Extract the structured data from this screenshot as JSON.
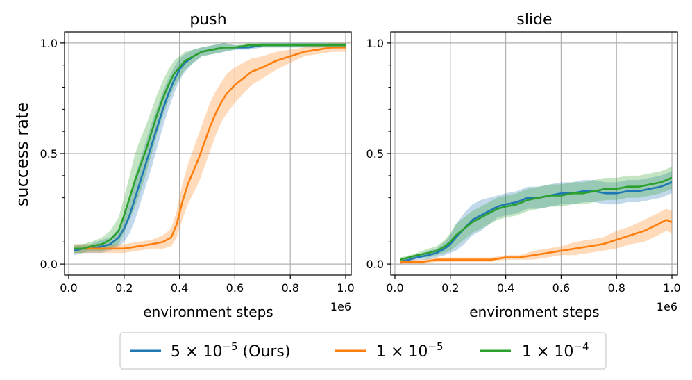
{
  "chart_data": {
    "type": "line",
    "ylabel": "success rate",
    "shared_legend": {
      "placement": "bottom-center",
      "entries": [
        {
          "label_main": "5 × 10",
          "label_sup": "−5",
          "label_suffix": " (Ours)",
          "color": "#1f77b4"
        },
        {
          "label_main": "1 × 10",
          "label_sup": "−5",
          "label_suffix": "",
          "color": "#ff7f0e"
        },
        {
          "label_main": "1 × 10",
          "label_sup": "−4",
          "label_suffix": "",
          "color": "#2ca02c"
        }
      ]
    },
    "panels": [
      {
        "title": "push",
        "xlabel": "environment steps",
        "x_offset_label": "1e6",
        "xlim": [
          -0.015,
          1.02
        ],
        "ylim": [
          -0.05,
          1.05
        ],
        "xticks": [
          0.0,
          0.2,
          0.4,
          0.6,
          0.8,
          1.0
        ],
        "xtick_labels": [
          "0.0",
          "0.2",
          "0.4",
          "0.6",
          "0.8",
          "1.0"
        ],
        "yticks": [
          0.0,
          0.5,
          1.0
        ],
        "ytick_labels": [
          "0.0",
          "0.5",
          "1.0"
        ],
        "grid": true,
        "series": [
          {
            "name": "5e-5 (Ours)",
            "color": "#1f77b4",
            "x": [
              0.02,
              0.05,
              0.08,
              0.12,
              0.15,
              0.18,
              0.2,
              0.22,
              0.24,
              0.26,
              0.28,
              0.3,
              0.32,
              0.34,
              0.36,
              0.38,
              0.4,
              0.42,
              0.45,
              0.48,
              0.52,
              0.56,
              0.6,
              0.65,
              0.7,
              0.75,
              0.8,
              0.85,
              0.9,
              0.95,
              1.0
            ],
            "mean": [
              0.06,
              0.07,
              0.07,
              0.08,
              0.09,
              0.12,
              0.16,
              0.22,
              0.3,
              0.38,
              0.46,
              0.54,
              0.62,
              0.7,
              0.77,
              0.83,
              0.88,
              0.91,
              0.94,
              0.96,
              0.97,
              0.98,
              0.98,
              0.98,
              0.99,
              0.99,
              0.99,
              0.99,
              0.99,
              0.99,
              0.99
            ],
            "band": [
              0.02,
              0.02,
              0.02,
              0.03,
              0.03,
              0.04,
              0.06,
              0.08,
              0.1,
              0.1,
              0.1,
              0.1,
              0.09,
              0.08,
              0.07,
              0.06,
              0.05,
              0.04,
              0.03,
              0.02,
              0.02,
              0.02,
              0.01,
              0.01,
              0.01,
              0.01,
              0.01,
              0.01,
              0.01,
              0.01,
              0.01
            ]
          },
          {
            "name": "1e-5",
            "color": "#ff7f0e",
            "x": [
              0.02,
              0.05,
              0.1,
              0.15,
              0.2,
              0.25,
              0.3,
              0.34,
              0.37,
              0.39,
              0.41,
              0.43,
              0.45,
              0.47,
              0.49,
              0.51,
              0.53,
              0.55,
              0.57,
              0.6,
              0.63,
              0.66,
              0.7,
              0.75,
              0.8,
              0.85,
              0.9,
              0.95,
              1.0
            ],
            "mean": [
              0.07,
              0.07,
              0.07,
              0.07,
              0.07,
              0.08,
              0.09,
              0.1,
              0.12,
              0.18,
              0.28,
              0.36,
              0.42,
              0.48,
              0.55,
              0.62,
              0.68,
              0.73,
              0.77,
              0.81,
              0.84,
              0.87,
              0.89,
              0.92,
              0.94,
              0.96,
              0.97,
              0.98,
              0.98
            ],
            "band": [
              0.02,
              0.02,
              0.02,
              0.02,
              0.02,
              0.02,
              0.02,
              0.03,
              0.04,
              0.06,
              0.08,
              0.09,
              0.1,
              0.11,
              0.11,
              0.11,
              0.1,
              0.09,
              0.09,
              0.08,
              0.07,
              0.06,
              0.05,
              0.04,
              0.03,
              0.02,
              0.02,
              0.02,
              0.02
            ]
          },
          {
            "name": "1e-4",
            "color": "#2ca02c",
            "x": [
              0.02,
              0.05,
              0.08,
              0.12,
              0.15,
              0.18,
              0.2,
              0.22,
              0.24,
              0.26,
              0.28,
              0.3,
              0.32,
              0.34,
              0.36,
              0.38,
              0.4,
              0.42,
              0.45,
              0.48,
              0.52,
              0.56,
              0.6,
              0.65,
              0.7,
              0.75,
              0.8,
              0.85,
              0.9,
              0.95,
              1.0
            ],
            "mean": [
              0.07,
              0.07,
              0.08,
              0.09,
              0.11,
              0.15,
              0.22,
              0.3,
              0.38,
              0.45,
              0.52,
              0.6,
              0.68,
              0.75,
              0.81,
              0.86,
              0.89,
              0.92,
              0.94,
              0.96,
              0.97,
              0.98,
              0.98,
              0.99,
              0.99,
              0.99,
              0.99,
              0.99,
              0.99,
              0.99,
              0.99
            ],
            "band": [
              0.02,
              0.02,
              0.02,
              0.03,
              0.04,
              0.06,
              0.08,
              0.1,
              0.12,
              0.12,
              0.11,
              0.1,
              0.09,
              0.08,
              0.07,
              0.06,
              0.05,
              0.04,
              0.03,
              0.02,
              0.02,
              0.02,
              0.01,
              0.01,
              0.01,
              0.01,
              0.01,
              0.01,
              0.01,
              0.01,
              0.01
            ]
          }
        ]
      },
      {
        "title": "slide",
        "xlabel": "environment steps",
        "x_offset_label": "1e6",
        "xlim": [
          -0.015,
          1.02
        ],
        "ylim": [
          -0.05,
          1.05
        ],
        "xticks": [
          0.0,
          0.2,
          0.4,
          0.6,
          0.8,
          1.0
        ],
        "xtick_labels": [
          "0.0",
          "0.2",
          "0.4",
          "0.6",
          "0.8",
          "1.0"
        ],
        "yticks": [
          0.0,
          0.5,
          1.0
        ],
        "ytick_labels": [
          "0.0",
          "0.5",
          "1.0"
        ],
        "grid": true,
        "series": [
          {
            "name": "5e-5 (Ours)",
            "color": "#1f77b4",
            "x": [
              0.02,
              0.05,
              0.08,
              0.12,
              0.15,
              0.18,
              0.2,
              0.22,
              0.25,
              0.28,
              0.31,
              0.34,
              0.37,
              0.4,
              0.44,
              0.48,
              0.52,
              0.56,
              0.6,
              0.64,
              0.68,
              0.72,
              0.76,
              0.8,
              0.84,
              0.88,
              0.92,
              0.96,
              1.0
            ],
            "mean": [
              0.01,
              0.02,
              0.03,
              0.04,
              0.05,
              0.07,
              0.09,
              0.12,
              0.16,
              0.2,
              0.22,
              0.24,
              0.26,
              0.27,
              0.28,
              0.3,
              0.3,
              0.31,
              0.32,
              0.32,
              0.33,
              0.33,
              0.32,
              0.32,
              0.33,
              0.33,
              0.34,
              0.35,
              0.37
            ],
            "band": [
              0.01,
              0.01,
              0.01,
              0.02,
              0.02,
              0.03,
              0.04,
              0.06,
              0.07,
              0.07,
              0.07,
              0.06,
              0.05,
              0.05,
              0.05,
              0.05,
              0.05,
              0.05,
              0.05,
              0.05,
              0.05,
              0.05,
              0.05,
              0.05,
              0.05,
              0.05,
              0.05,
              0.05,
              0.05
            ]
          },
          {
            "name": "1e-5",
            "color": "#ff7f0e",
            "x": [
              0.02,
              0.05,
              0.1,
              0.15,
              0.2,
              0.25,
              0.3,
              0.35,
              0.4,
              0.45,
              0.5,
              0.55,
              0.6,
              0.65,
              0.7,
              0.75,
              0.8,
              0.85,
              0.9,
              0.95,
              0.98,
              1.0
            ],
            "mean": [
              0.01,
              0.01,
              0.01,
              0.02,
              0.02,
              0.02,
              0.02,
              0.02,
              0.03,
              0.03,
              0.04,
              0.05,
              0.06,
              0.07,
              0.08,
              0.09,
              0.11,
              0.13,
              0.15,
              0.18,
              0.2,
              0.19
            ],
            "band": [
              0.01,
              0.01,
              0.01,
              0.01,
              0.01,
              0.01,
              0.01,
              0.01,
              0.01,
              0.01,
              0.02,
              0.02,
              0.02,
              0.03,
              0.03,
              0.03,
              0.04,
              0.04,
              0.05,
              0.05,
              0.05,
              0.05
            ]
          },
          {
            "name": "1e-4",
            "color": "#2ca02c",
            "x": [
              0.02,
              0.05,
              0.08,
              0.12,
              0.15,
              0.18,
              0.2,
              0.22,
              0.25,
              0.28,
              0.31,
              0.34,
              0.37,
              0.4,
              0.44,
              0.48,
              0.52,
              0.56,
              0.6,
              0.64,
              0.68,
              0.72,
              0.76,
              0.8,
              0.84,
              0.88,
              0.92,
              0.96,
              1.0
            ],
            "mean": [
              0.02,
              0.03,
              0.04,
              0.05,
              0.06,
              0.08,
              0.1,
              0.13,
              0.16,
              0.19,
              0.21,
              0.23,
              0.25,
              0.26,
              0.27,
              0.29,
              0.3,
              0.31,
              0.31,
              0.32,
              0.32,
              0.33,
              0.34,
              0.34,
              0.35,
              0.35,
              0.36,
              0.37,
              0.39
            ],
            "band": [
              0.01,
              0.01,
              0.01,
              0.02,
              0.02,
              0.03,
              0.04,
              0.05,
              0.05,
              0.05,
              0.05,
              0.05,
              0.05,
              0.05,
              0.05,
              0.05,
              0.05,
              0.05,
              0.05,
              0.05,
              0.05,
              0.05,
              0.05,
              0.05,
              0.05,
              0.05,
              0.05,
              0.05,
              0.05
            ]
          }
        ]
      }
    ]
  }
}
